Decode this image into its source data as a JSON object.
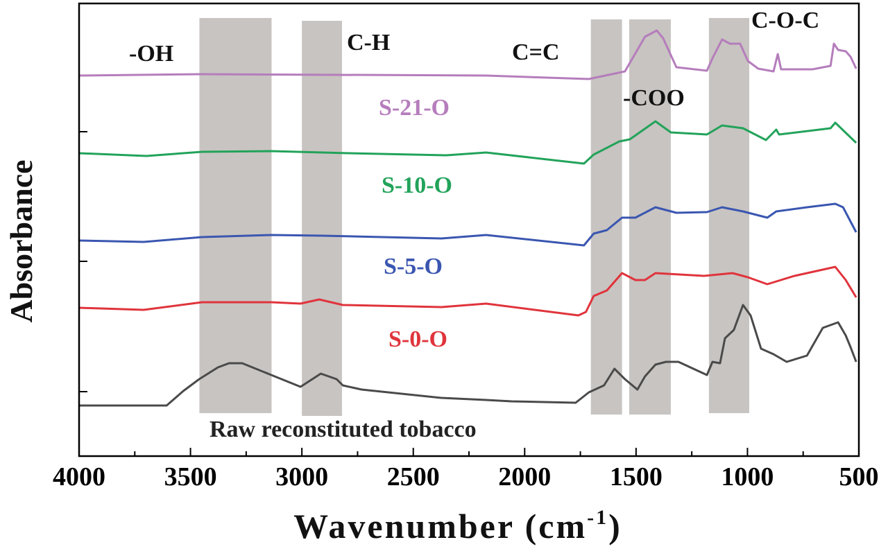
{
  "chart_data": {
    "type": "line",
    "title": "",
    "xlabel": "Wavenumber (cm",
    "xlabel_sup": "-1",
    "xlabel_close": ")",
    "ylabel": "Absorbance",
    "xlim": [
      4000,
      500
    ],
    "x_reversed": true,
    "ylim": [
      0,
      6.53
    ],
    "y_tick_labels_shown": false,
    "x_ticks": [
      4000,
      3500,
      3000,
      2500,
      2000,
      1500,
      1000,
      500
    ],
    "x_tick_labels": [
      "4000",
      "3500",
      "3000",
      "2500",
      "2000",
      "1500",
      "1000",
      "500"
    ],
    "y_ticks": [
      0.93,
      2.81,
      4.68
    ],
    "grid": false,
    "legend": "none (inline labels)",
    "band_color": "#c8c4c1",
    "bands": [
      {
        "label": "-OH",
        "from": 3460,
        "to": 3136,
        "ymin": 0.62,
        "ymax": 6.32
      },
      {
        "label": "C-H",
        "from": 3000,
        "to": 2820,
        "ymin": 0.58,
        "ymax": 6.28
      },
      {
        "label": "C=C",
        "from": 1703,
        "to": 1563,
        "ymin": 0.6,
        "ymax": 6.3
      },
      {
        "label": "-COO",
        "from": 1531,
        "to": 1344,
        "ymin": 0.6,
        "ymax": 6.3
      },
      {
        "label": "C-O-C",
        "from": 1173,
        "to": 992,
        "ymin": 0.62,
        "ymax": 6.32
      }
    ],
    "series": [
      {
        "name": "Raw reconstituted tobacco",
        "color": "#4a4a4a",
        "x": [
          4000,
          3607,
          3532,
          3461,
          3377,
          3327,
          3268,
          3137,
          3006,
          2915,
          2844,
          2816,
          2731,
          2373,
          2173,
          2058,
          1771,
          1712,
          1644,
          1597,
          1550,
          1494,
          1460,
          1413,
          1366,
          1310,
          1182,
          1157,
          1123,
          1101,
          1061,
          1020,
          986,
          939,
          883,
          824,
          733,
          662,
          593,
          559,
          537,
          512
        ],
        "y": [
          0.73,
          0.73,
          0.94,
          1.11,
          1.28,
          1.34,
          1.34,
          1.17,
          1.0,
          1.19,
          1.11,
          1.02,
          0.96,
          0.84,
          0.81,
          0.79,
          0.77,
          0.92,
          1.02,
          1.26,
          1.11,
          0.96,
          1.15,
          1.32,
          1.36,
          1.36,
          1.17,
          1.36,
          1.34,
          1.7,
          1.82,
          2.18,
          2.03,
          1.55,
          1.47,
          1.36,
          1.45,
          1.85,
          1.93,
          1.74,
          1.57,
          1.36
        ]
      },
      {
        "name": "S-0-O",
        "color": "#e0343c",
        "x": [
          4000,
          3710,
          3448,
          3137,
          3006,
          2922,
          2816,
          2373,
          2173,
          1759,
          1725,
          1690,
          1631,
          1563,
          1503,
          1460,
          1413,
          1195,
          1067,
          998,
          911,
          789,
          606,
          559,
          512
        ],
        "y": [
          2.14,
          2.11,
          2.22,
          2.22,
          2.2,
          2.26,
          2.18,
          2.15,
          2.2,
          2.03,
          2.08,
          2.31,
          2.39,
          2.64,
          2.54,
          2.54,
          2.64,
          2.6,
          2.64,
          2.58,
          2.48,
          2.6,
          2.73,
          2.54,
          2.29
        ]
      },
      {
        "name": "S-5-O",
        "color": "#3a56b0",
        "x": [
          4000,
          3710,
          3448,
          3137,
          2909,
          2373,
          2173,
          1734,
          1690,
          1631,
          1563,
          1503,
          1413,
          1319,
          1182,
          1114,
          1020,
          911,
          871,
          733,
          606,
          571,
          512
        ],
        "y": [
          3.11,
          3.09,
          3.16,
          3.19,
          3.18,
          3.14,
          3.19,
          3.04,
          3.21,
          3.26,
          3.44,
          3.44,
          3.59,
          3.51,
          3.52,
          3.59,
          3.53,
          3.44,
          3.53,
          3.59,
          3.64,
          3.59,
          3.23
        ]
      },
      {
        "name": "S-10-O",
        "color": "#22a35a",
        "x": [
          4000,
          3698,
          3448,
          3137,
          2791,
          2351,
          2173,
          1734,
          1690,
          1575,
          1528,
          1413,
          1344,
          1182,
          1114,
          1020,
          917,
          871,
          858,
          627,
          606,
          512
        ],
        "y": [
          4.37,
          4.33,
          4.39,
          4.4,
          4.37,
          4.34,
          4.38,
          4.22,
          4.35,
          4.54,
          4.57,
          4.83,
          4.67,
          4.64,
          4.77,
          4.73,
          4.56,
          4.71,
          4.64,
          4.73,
          4.81,
          4.52
        ]
      },
      {
        "name": "S-21-O",
        "color": "#b57dbc",
        "x": [
          4000,
          3448,
          2173,
          1712,
          1550,
          1460,
          1407,
          1379,
          1319,
          1182,
          1157,
          1114,
          1079,
          1033,
          998,
          952,
          883,
          864,
          849,
          708,
          627,
          612,
          593,
          559,
          537,
          512
        ],
        "y": [
          5.49,
          5.51,
          5.49,
          5.44,
          5.55,
          6.05,
          6.14,
          6.03,
          5.61,
          5.56,
          5.74,
          6.01,
          5.95,
          5.95,
          5.7,
          5.59,
          5.55,
          5.8,
          5.58,
          5.58,
          5.63,
          5.95,
          5.86,
          5.84,
          5.76,
          5.59
        ]
      }
    ]
  }
}
